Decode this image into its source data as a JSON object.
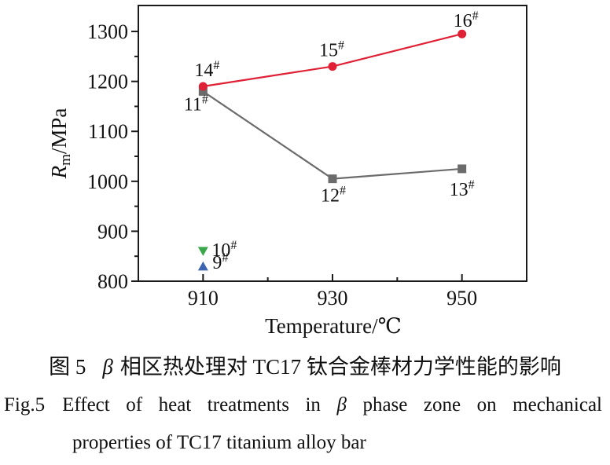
{
  "figure": {
    "caption_zh": {
      "fig_no": "图 5",
      "beta": "β",
      "text": "相区热处理对 TC17 钛合金棒材力学性能的影响"
    },
    "caption_en": {
      "fig_no": "Fig.5",
      "part1": "Effect of heat treatments in",
      "beta": "β",
      "part2": "phase zone on mechanical",
      "line2": "properties of TC17 titanium alloy bar"
    }
  },
  "chart_data": {
    "type": "line",
    "xlabel": "Temperature/℃",
    "ylabel": "Rm/MPa",
    "ylabel_parts": {
      "symbol": "R",
      "subscript": "m",
      "unit": "/MPa"
    },
    "xlim": [
      900,
      960
    ],
    "ylim": [
      800,
      1352
    ],
    "x_major_ticks": [
      910,
      930,
      950
    ],
    "x_minor_ticks": [
      920,
      940
    ],
    "y_major_ticks": [
      800,
      900,
      1000,
      1100,
      1200,
      1300
    ],
    "y_minor_ticks": [
      850,
      950,
      1050,
      1150,
      1250
    ],
    "grid": false,
    "legend_position": "none",
    "frame_color": "#1a1a1a",
    "series": [
      {
        "name": "red-circle-series",
        "marker": "circle",
        "color": "#e02034",
        "x": [
          910,
          930,
          950
        ],
        "values": [
          1190,
          1230,
          1295
        ],
        "point_labels": [
          "14#",
          "15#",
          "16#"
        ]
      },
      {
        "name": "gray-square-series",
        "marker": "square",
        "color": "#6b6b6b",
        "x": [
          910,
          930,
          950
        ],
        "values": [
          1180,
          1005,
          1025
        ],
        "point_labels": [
          "11#",
          "12#",
          "13#"
        ]
      },
      {
        "name": "green-triangle-down-point",
        "marker": "triangle-down",
        "color": "#3aa74a",
        "x": [
          910
        ],
        "values": [
          860
        ],
        "point_labels": [
          "10#"
        ]
      },
      {
        "name": "blue-triangle-up-point",
        "marker": "triangle-up",
        "color": "#3c64b1",
        "x": [
          910
        ],
        "values": [
          830
        ],
        "point_labels": [
          "9#"
        ]
      }
    ]
  }
}
